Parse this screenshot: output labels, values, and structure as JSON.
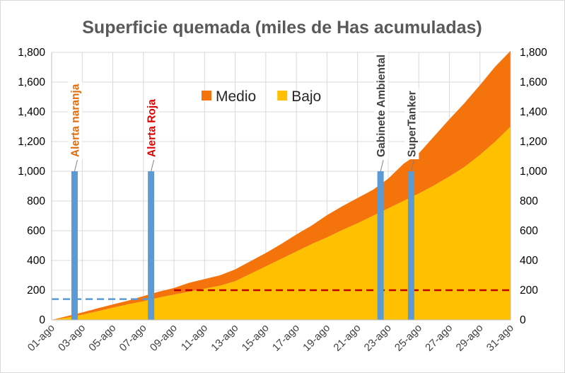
{
  "chart_data": {
    "type": "area",
    "title": "Superficie quemada (miles de Has acumuladas)",
    "x_tick_labels": [
      "01-ago",
      "03-ago",
      "05-ago",
      "07-ago",
      "09-ago",
      "11-ago",
      "13-ago",
      "15-ago",
      "17-ago",
      "19-ago",
      "21-ago",
      "23-ago",
      "25-ago",
      "27-ago",
      "29-ago",
      "31-ago"
    ],
    "y_ticks": [
      "0",
      "200",
      "400",
      "600",
      "800",
      "1,000",
      "1,200",
      "1,400",
      "1,600",
      "1,800"
    ],
    "ylim": [
      0,
      1800
    ],
    "x_range_days": [
      1,
      31
    ],
    "grid": true,
    "legend_position": "top-center",
    "stacked": true,
    "days": [
      1,
      2,
      3,
      4,
      5,
      6,
      7,
      8,
      9,
      10,
      11,
      12,
      13,
      14,
      15,
      16,
      17,
      18,
      19,
      20,
      21,
      22,
      23,
      24,
      25,
      26,
      27,
      28,
      29,
      30,
      31
    ],
    "series": [
      {
        "name": "Bajo",
        "color": "#ffc000",
        "values": [
          0,
          15,
          35,
          58,
          82,
          105,
          125,
          150,
          170,
          190,
          210,
          230,
          260,
          310,
          360,
          410,
          460,
          510,
          555,
          605,
          650,
          700,
          750,
          800,
          850,
          905,
          965,
          1030,
          1110,
          1200,
          1300
        ]
      },
      {
        "name": "Medio",
        "color": "#f4730b",
        "values": [
          0,
          10,
          15,
          20,
          22,
          25,
          35,
          40,
          45,
          60,
          65,
          70,
          80,
          85,
          90,
          100,
          115,
          125,
          150,
          160,
          170,
          175,
          200,
          250,
          270,
          330,
          385,
          430,
          470,
          505,
          510
        ]
      }
    ],
    "events": [
      {
        "label": "Alerta naranja",
        "day": 2.5,
        "value": 1000,
        "color": "#e26b0a"
      },
      {
        "label": "Alerta Roja",
        "day": 7.5,
        "value": 1000,
        "color": "#e00000"
      },
      {
        "label": "Gabinete Ambiental",
        "day": 22.5,
        "value": 1000,
        "color": "#404040"
      },
      {
        "label": "SuperTanker",
        "day": 24.5,
        "value": 1000,
        "color": "#404040"
      }
    ],
    "reference_lines": [
      {
        "value": 140,
        "from_day": 1,
        "to_day": 7.5,
        "color": "#5b9bd5",
        "style": "dashed"
      },
      {
        "value": 200,
        "from_day": 9,
        "to_day": 31,
        "color": "#c00000",
        "style": "dashed"
      }
    ],
    "colors": {
      "event_bar": "#5b9bd5",
      "grid": "#d9d9d9",
      "axis": "#bfbfbf"
    }
  }
}
